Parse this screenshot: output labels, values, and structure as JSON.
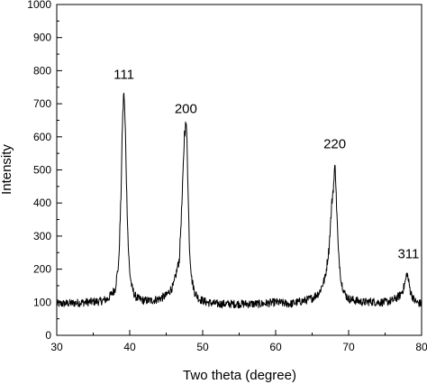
{
  "chart_data": {
    "type": "line",
    "title": "",
    "xlabel": "Two theta (degree)",
    "ylabel": "Intensity",
    "xlim": [
      30,
      80
    ],
    "ylim": [
      0,
      1000
    ],
    "xticks": [
      30,
      40,
      50,
      60,
      70,
      80
    ],
    "yticks": [
      0,
      100,
      200,
      300,
      400,
      500,
      600,
      700,
      800,
      900,
      1000
    ],
    "grid": false,
    "baseline": 95,
    "series": [
      {
        "x": [
          30,
          32,
          34,
          36,
          37,
          38,
          38.5,
          38.8,
          39.0,
          39.2,
          39.4,
          39.6,
          39.8,
          40.0,
          40.3,
          40.7,
          41.2,
          42,
          43,
          44,
          45,
          46,
          46.8,
          47.2,
          47.5,
          47.7,
          47.85,
          48.0,
          48.2,
          48.5,
          48.9,
          49.5,
          50.5,
          52,
          54,
          56,
          58,
          60,
          62,
          63,
          64,
          65,
          66,
          66.8,
          67.3,
          67.7,
          68.0,
          68.15,
          68.3,
          68.6,
          69.0,
          69.5,
          70,
          71,
          72,
          73,
          74,
          75,
          76,
          77,
          77.5,
          77.8,
          78.0,
          78.2,
          78.5,
          79,
          79.5,
          80
        ],
        "y": [
          95,
          97,
          100,
          103,
          110,
          140,
          220,
          420,
          640,
          740,
          620,
          420,
          270,
          190,
          145,
          120,
          110,
          105,
          105,
          110,
          120,
          150,
          230,
          420,
          610,
          640,
          600,
          430,
          260,
          170,
          130,
          110,
          100,
          95,
          95,
          95,
          95,
          100,
          95,
          100,
          105,
          112,
          130,
          175,
          260,
          400,
          470,
          525,
          420,
          250,
          160,
          125,
          110,
          105,
          100,
          102,
          100,
          100,
          105,
          120,
          140,
          165,
          190,
          165,
          130,
          105,
          98,
          95
        ]
      }
    ],
    "annotations": [
      {
        "text": "111",
        "x": 39.2,
        "y": 775
      },
      {
        "text": "200",
        "x": 47.7,
        "y": 672
      },
      {
        "text": "220",
        "x": 68.1,
        "y": 565
      },
      {
        "text": "311",
        "x": 78.2,
        "y": 233
      }
    ]
  }
}
